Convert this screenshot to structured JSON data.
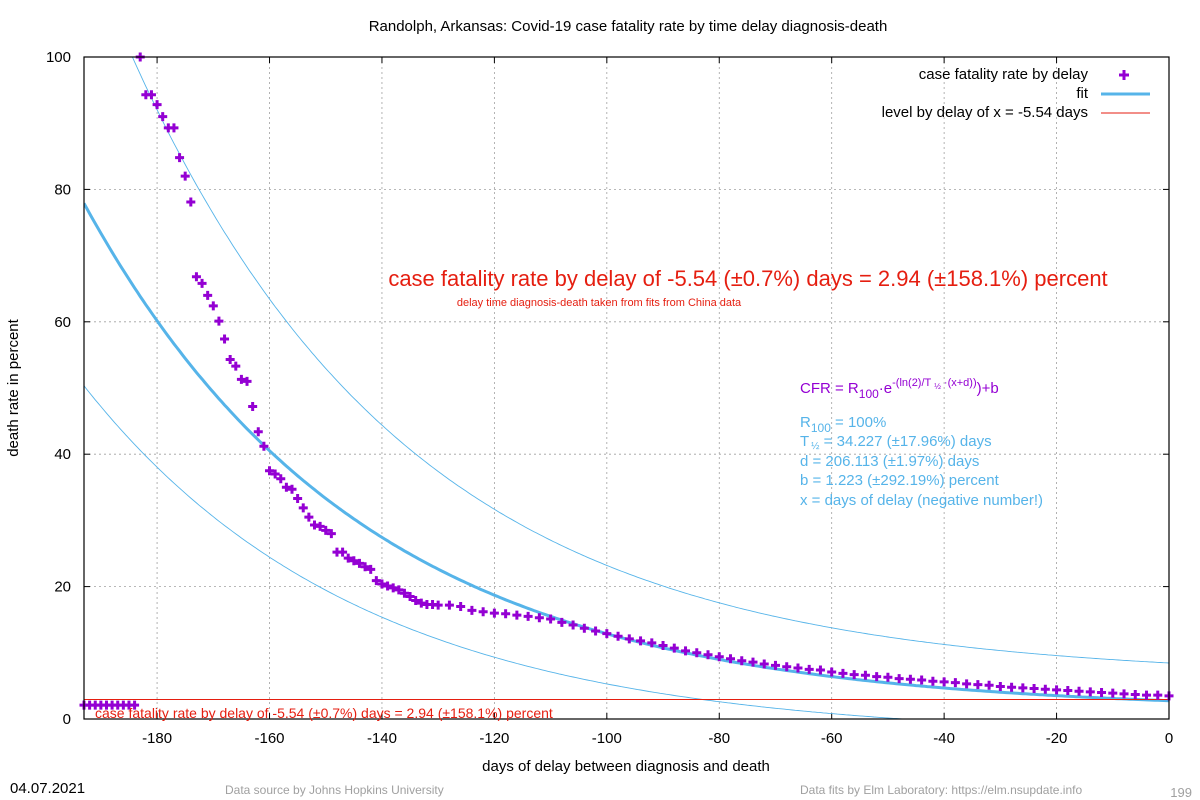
{
  "chart_data": {
    "type": "scatter",
    "title": "Randolph,  Arkansas: Covid-19 case fatality rate by time delay diagnosis-death",
    "xlabel": "days of delay between diagnosis and death",
    "ylabel": "death rate in percent",
    "xlim": [
      -193,
      0
    ],
    "ylim": [
      0,
      100
    ],
    "xticks": [
      -180,
      -160,
      -140,
      -120,
      -100,
      -80,
      -60,
      -40,
      -20,
      0
    ],
    "yticks": [
      0,
      20,
      40,
      60,
      80,
      100
    ],
    "grid": true,
    "legend_position": "top-right",
    "legend": {
      "points": "case fatality rate by delay",
      "fit": "fit",
      "level": "level by delay of x = -5.54 days"
    },
    "colors": {
      "points": "#9400d3",
      "fit": "#56b4e9",
      "level": "#e51e10",
      "annotation": "#e51e10",
      "params": "#56b4e9",
      "formula": "#9400d3",
      "footer": "#a0a0a0"
    },
    "fit_params": {
      "R100": 100,
      "T_half": 34.227,
      "d": 206.113,
      "b": 1.223
    },
    "level_value": 2.94,
    "series": [
      {
        "name": "case fatality rate by delay",
        "x": [
          -193,
          -192,
          -191,
          -190,
          -189,
          -188,
          -187,
          -186,
          -185,
          -184,
          -183,
          -182,
          -181,
          -180,
          -179,
          -178,
          -177,
          -176,
          -175,
          -174,
          -173,
          -172,
          -171,
          -170,
          -169,
          -168,
          -167,
          -166,
          -165,
          -164,
          -163,
          -162,
          -161,
          -160,
          -159,
          -158,
          -157,
          -156,
          -155,
          -154,
          -153,
          -152,
          -151,
          -150,
          -149,
          -148,
          -147,
          -146,
          -145,
          -144,
          -143,
          -142,
          -141,
          -140,
          -139,
          -138,
          -137,
          -136,
          -135,
          -134,
          -133,
          -132,
          -131,
          -130,
          -128,
          -126,
          -124,
          -122,
          -120,
          -118,
          -116,
          -114,
          -112,
          -110,
          -108,
          -106,
          -104,
          -102,
          -100,
          -98,
          -96,
          -94,
          -92,
          -90,
          -88,
          -86,
          -84,
          -82,
          -80,
          -78,
          -76,
          -74,
          -72,
          -70,
          -68,
          -66,
          -64,
          -62,
          -60,
          -58,
          -56,
          -54,
          -52,
          -50,
          -48,
          -46,
          -44,
          -42,
          -40,
          -38,
          -36,
          -34,
          -32,
          -30,
          -28,
          -26,
          -24,
          -22,
          -20,
          -18,
          -16,
          -14,
          -12,
          -10,
          -8,
          -6,
          -4,
          -2,
          0
        ],
        "y": [
          2.1,
          2.1,
          2.1,
          2.1,
          2.1,
          2.1,
          2.1,
          2.1,
          2.1,
          2.1,
          100,
          94.3,
          94.3,
          92.8,
          91.0,
          89.3,
          89.3,
          84.8,
          82.0,
          78.1,
          66.8,
          65.8,
          64.0,
          62.4,
          60.1,
          57.4,
          54.3,
          53.3,
          51.3,
          51.0,
          47.2,
          43.4,
          41.2,
          37.5,
          37.0,
          36.3,
          35.0,
          34.7,
          33.3,
          31.9,
          30.5,
          29.3,
          29.1,
          28.5,
          28.0,
          25.2,
          25.2,
          24.3,
          23.9,
          23.5,
          23.0,
          22.6,
          20.9,
          20.4,
          20.1,
          19.8,
          19.5,
          19.0,
          18.5,
          17.9,
          17.5,
          17.3,
          17.3,
          17.2,
          17.2,
          17.0,
          16.4,
          16.2,
          16.0,
          15.9,
          15.7,
          15.5,
          15.3,
          15.1,
          14.6,
          14.2,
          13.7,
          13.3,
          12.9,
          12.5,
          12.1,
          11.8,
          11.5,
          11.1,
          10.7,
          10.3,
          10.0,
          9.7,
          9.4,
          9.1,
          8.8,
          8.6,
          8.3,
          8.1,
          7.9,
          7.7,
          7.5,
          7.4,
          7.1,
          6.9,
          6.7,
          6.6,
          6.4,
          6.3,
          6.1,
          6.0,
          5.9,
          5.7,
          5.6,
          5.5,
          5.3,
          5.2,
          5.1,
          4.9,
          4.8,
          4.7,
          4.6,
          4.5,
          4.4,
          4.3,
          4.2,
          4.1,
          4.0,
          3.9,
          3.8,
          3.7,
          3.6,
          3.6,
          3.5
        ]
      }
    ]
  },
  "annotation": {
    "main": "case fatality rate by delay of -5.54 (±0.7%) days = 2.94 (±158.1%) percent",
    "sub": "delay time diagnosis-death taken from fits from China data",
    "level_label": "case fatality rate by delay of -5.54 (±0.7%) days = 2.94 (±158.1%) percent"
  },
  "formula": {
    "cfr": "CFR = R",
    "r_sub": "100",
    "dot_e": "·e",
    "exponent_1": "-(ln(2)/T",
    "exponent_half": "½",
    "exponent_2": "·(x+d))",
    "plus_b": ")+b"
  },
  "params": {
    "r100_prefix": "R",
    "r100_sub": "100",
    "r100_value": " = 100%",
    "thalf_prefix": "T",
    "thalf_sub": "½",
    "thalf_value": " = 34.227 (±17.96%) days",
    "d_line": "d = 206.113 (±1.97%) days",
    "b_line": "b = 1.223 (±292.19%) percent",
    "x_line": "x = days of delay (negative number!)"
  },
  "footer": {
    "date": "04.07.2021",
    "source": "Data source by Johns Hopkins University",
    "fits": "Data fits by Elm Laboratory: https://elm.nsupdate.info",
    "page": "199"
  }
}
